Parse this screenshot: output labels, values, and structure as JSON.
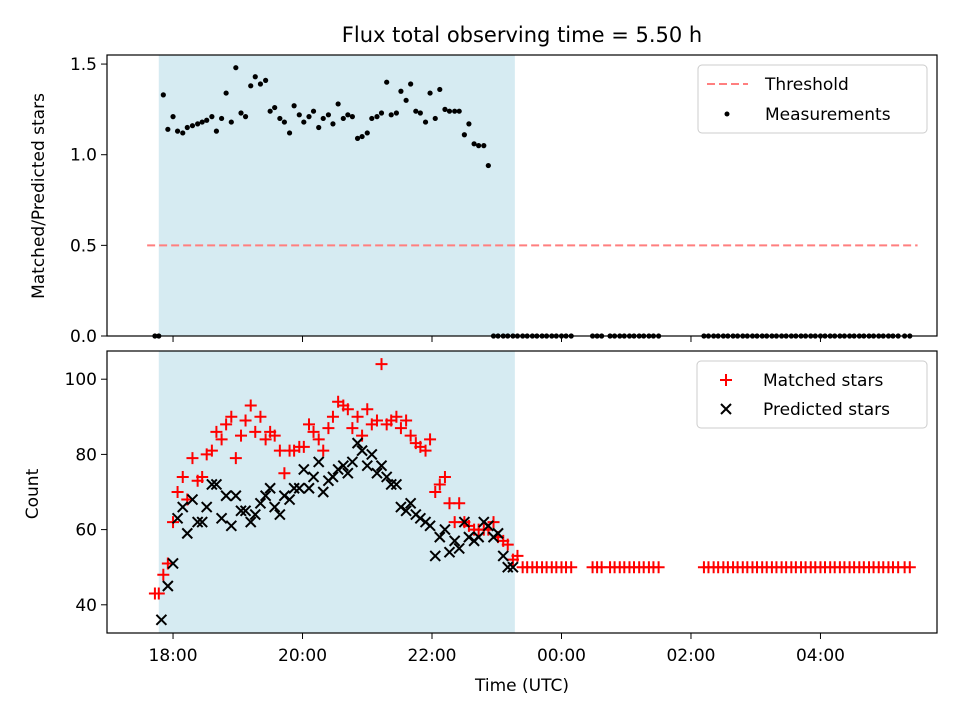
{
  "chart_data": {
    "title": "Flux total observing time = 5.50 h",
    "xlabel": "Time (UTC)",
    "x_unit": "hours since 00:00 UTC on the first night",
    "xlim": [
      16.98,
      29.8
    ],
    "xticks": [
      {
        "x": 18,
        "label": "18:00"
      },
      {
        "x": 20,
        "label": "20:00"
      },
      {
        "x": 22,
        "label": "22:00"
      },
      {
        "x": 24,
        "label": "00:00"
      },
      {
        "x": 26,
        "label": "02:00"
      },
      {
        "x": 28,
        "label": "04:00"
      }
    ],
    "colors": {
      "threshold": "#ff7f7f",
      "measurements": "#000000",
      "matched": "#ff0000",
      "predicted": "#000000",
      "shade": "#add8e6"
    },
    "observing_window": {
      "start": 17.78,
      "end": 23.28
    },
    "panels": [
      {
        "type": "scatter",
        "ylabel": "Matched/Predicted stars",
        "ylim": [
          0,
          1.55
        ],
        "yticks": [
          {
            "y": 0,
            "label": "0.0"
          },
          {
            "y": 0.5,
            "label": "0.5"
          },
          {
            "y": 1.0,
            "label": "1.0"
          },
          {
            "y": 1.5,
            "label": "1.5"
          }
        ],
        "legend_position": "top-right",
        "threshold": {
          "name": "Threshold",
          "y": 0.5,
          "x": [
            17.6,
            29.5
          ]
        },
        "measurements": {
          "name": "Measurements",
          "x": [
            17.72,
            17.78,
            17.85,
            17.92,
            18.0,
            18.07,
            18.15,
            18.22,
            18.3,
            18.38,
            18.45,
            18.52,
            18.6,
            18.67,
            18.75,
            18.82,
            18.9,
            18.97,
            19.05,
            19.12,
            19.2,
            19.27,
            19.35,
            19.43,
            19.5,
            19.57,
            19.65,
            19.72,
            19.8,
            19.87,
            19.95,
            20.02,
            20.1,
            20.17,
            20.25,
            20.32,
            20.4,
            20.47,
            20.55,
            20.63,
            20.7,
            20.77,
            20.85,
            20.92,
            21.0,
            21.07,
            21.15,
            21.22,
            21.3,
            21.37,
            21.45,
            21.52,
            21.6,
            21.67,
            21.75,
            21.82,
            21.9,
            21.97,
            22.05,
            22.12,
            22.2,
            22.27,
            22.35,
            22.42,
            22.5,
            22.57,
            22.65,
            22.72,
            22.8,
            22.87,
            22.95,
            23.02,
            23.1,
            23.17,
            23.25,
            23.32,
            23.4,
            23.47,
            23.55,
            23.62,
            23.7,
            23.77,
            23.85,
            23.92,
            24.0,
            24.07,
            24.15,
            24.48,
            24.55,
            24.62,
            24.75,
            24.82,
            24.9,
            24.97,
            25.05,
            25.12,
            25.2,
            25.27,
            25.35,
            25.42,
            25.5,
            26.2,
            26.27,
            26.35,
            26.42,
            26.5,
            26.57,
            26.65,
            26.72,
            26.8,
            26.87,
            26.95,
            27.02,
            27.1,
            27.17,
            27.25,
            27.32,
            27.4,
            27.47,
            27.55,
            27.62,
            27.7,
            27.77,
            27.85,
            27.92,
            28.0,
            28.07,
            28.15,
            28.22,
            28.3,
            28.37,
            28.45,
            28.52,
            28.6,
            28.67,
            28.75,
            28.82,
            28.9,
            28.97,
            29.05,
            29.12,
            29.2,
            29.3,
            29.38
          ],
          "y": [
            0.0,
            0.0,
            1.33,
            1.14,
            1.21,
            1.13,
            1.12,
            1.15,
            1.16,
            1.17,
            1.18,
            1.19,
            1.21,
            1.13,
            1.2,
            1.34,
            1.18,
            1.48,
            1.23,
            1.21,
            1.38,
            1.43,
            1.39,
            1.41,
            1.24,
            1.26,
            1.2,
            1.18,
            1.12,
            1.27,
            1.22,
            1.18,
            1.21,
            1.24,
            1.15,
            1.2,
            1.22,
            1.17,
            1.28,
            1.2,
            1.22,
            1.21,
            1.09,
            1.1,
            1.12,
            1.2,
            1.21,
            1.23,
            1.4,
            1.22,
            1.23,
            1.35,
            1.3,
            1.39,
            1.24,
            1.23,
            1.18,
            1.34,
            1.2,
            1.36,
            1.25,
            1.24,
            1.24,
            1.24,
            1.11,
            1.17,
            1.06,
            1.05,
            1.05,
            0.94,
            0.0,
            0.0,
            0.0,
            0.0,
            0.0,
            0.0,
            0.0,
            0.0,
            0.0,
            0.0,
            0.0,
            0.0,
            0.0,
            0.0,
            0.0,
            0.0,
            0.0,
            0.0,
            0.0,
            0.0,
            0.0,
            0.0,
            0.0,
            0.0,
            0.0,
            0.0,
            0.0,
            0.0,
            0.0,
            0.0,
            0.0,
            0.0,
            0.0,
            0.0,
            0.0,
            0.0,
            0.0,
            0.0,
            0.0,
            0.0,
            0.0,
            0.0,
            0.0,
            0.0,
            0.0,
            0.0,
            0.0,
            0.0,
            0.0,
            0.0,
            0.0,
            0.0,
            0.0,
            0.0,
            0.0,
            0.0,
            0.0,
            0.0,
            0.0,
            0.0,
            0.0,
            0.0,
            0.0,
            0.0,
            0.0,
            0.0,
            0.0,
            0.0,
            0.0,
            0.0,
            0.0,
            0.0,
            0.0,
            0.0
          ]
        }
      },
      {
        "type": "scatter",
        "ylabel": "Count",
        "ylim": [
          32.5,
          107.5
        ],
        "yticks": [
          {
            "y": 40,
            "label": "40"
          },
          {
            "y": 60,
            "label": "60"
          },
          {
            "y": 80,
            "label": "80"
          },
          {
            "y": 100,
            "label": "100"
          }
        ],
        "legend_position": "top-right",
        "matched": {
          "name": "Matched stars",
          "x": [
            17.72,
            17.78,
            17.85,
            17.92,
            18.0,
            18.07,
            18.15,
            18.22,
            18.3,
            18.38,
            18.45,
            18.52,
            18.6,
            18.67,
            18.75,
            18.82,
            18.9,
            18.97,
            19.05,
            19.12,
            19.2,
            19.27,
            19.35,
            19.43,
            19.5,
            19.57,
            19.65,
            19.72,
            19.8,
            19.87,
            19.95,
            20.02,
            20.1,
            20.17,
            20.25,
            20.32,
            20.4,
            20.47,
            20.55,
            20.63,
            20.7,
            20.77,
            20.85,
            20.92,
            21.0,
            21.07,
            21.15,
            21.22,
            21.3,
            21.37,
            21.45,
            21.52,
            21.6,
            21.67,
            21.75,
            21.82,
            21.9,
            21.97,
            22.05,
            22.12,
            22.2,
            22.27,
            22.35,
            22.42,
            22.5,
            22.57,
            22.65,
            22.72,
            22.8,
            22.87,
            22.95,
            23.02,
            23.1,
            23.17,
            23.25,
            23.32,
            23.4,
            23.47,
            23.55,
            23.62,
            23.7,
            23.77,
            23.85,
            23.92,
            24.0,
            24.07,
            24.15,
            24.48,
            24.55,
            24.62,
            24.75,
            24.82,
            24.9,
            24.97,
            25.05,
            25.12,
            25.2,
            25.27,
            25.35,
            25.42,
            25.5,
            26.2,
            26.27,
            26.35,
            26.42,
            26.5,
            26.57,
            26.65,
            26.72,
            26.8,
            26.87,
            26.95,
            27.02,
            27.1,
            27.17,
            27.25,
            27.32,
            27.4,
            27.47,
            27.55,
            27.62,
            27.7,
            27.77,
            27.85,
            27.92,
            28.0,
            28.07,
            28.15,
            28.22,
            28.3,
            28.37,
            28.45,
            28.52,
            28.6,
            28.67,
            28.75,
            28.82,
            28.9,
            28.97,
            29.05,
            29.12,
            29.2,
            29.3,
            29.38
          ],
          "y": [
            43,
            43,
            48,
            51,
            62,
            70,
            74,
            68,
            79,
            73,
            74,
            80,
            81,
            86,
            84,
            88,
            90,
            79,
            85,
            89,
            93,
            86,
            90,
            84,
            86,
            85,
            81,
            75,
            81,
            81,
            82,
            82,
            88,
            86,
            84,
            81,
            87,
            90,
            94,
            93,
            92,
            87,
            90,
            85,
            92,
            88,
            89,
            104,
            88,
            89,
            90,
            87,
            89,
            85,
            83,
            82,
            81,
            84,
            70,
            72,
            74,
            67,
            62,
            67,
            62,
            61,
            60,
            60,
            60,
            60,
            62,
            58,
            57,
            56,
            52,
            53,
            50,
            50,
            50,
            50,
            50,
            50,
            50,
            50,
            50,
            50,
            50,
            50,
            50,
            50,
            50,
            50,
            50,
            50,
            50,
            50,
            50,
            50,
            50,
            50,
            50,
            50,
            50,
            50,
            50,
            50,
            50,
            50,
            50,
            50,
            50,
            50,
            50,
            50,
            50,
            50,
            50,
            50,
            50,
            50,
            50,
            50,
            50,
            50,
            50,
            50,
            50,
            50,
            50,
            50,
            50,
            50,
            50,
            50,
            50,
            50,
            50,
            50,
            50,
            50,
            50,
            50,
            50,
            50
          ]
        },
        "predicted": {
          "name": "Predicted stars",
          "x": [
            17.82,
            17.92,
            18.0,
            18.07,
            18.15,
            18.22,
            18.3,
            18.38,
            18.45,
            18.52,
            18.6,
            18.67,
            18.75,
            18.82,
            18.9,
            18.97,
            19.05,
            19.12,
            19.2,
            19.27,
            19.35,
            19.43,
            19.5,
            19.57,
            19.65,
            19.72,
            19.8,
            19.87,
            19.95,
            20.02,
            20.1,
            20.17,
            20.25,
            20.32,
            20.4,
            20.47,
            20.55,
            20.63,
            20.7,
            20.77,
            20.85,
            20.92,
            21.0,
            21.07,
            21.15,
            21.22,
            21.3,
            21.37,
            21.45,
            21.52,
            21.6,
            21.67,
            21.75,
            21.82,
            21.9,
            21.97,
            22.05,
            22.12,
            22.2,
            22.27,
            22.35,
            22.42,
            22.5,
            22.57,
            22.65,
            22.72,
            22.8,
            22.87,
            22.95,
            23.02,
            23.1,
            23.17,
            23.25
          ],
          "y": [
            36,
            45,
            51,
            63,
            66,
            59,
            68,
            62,
            62,
            66,
            72,
            72,
            63,
            69,
            61,
            69,
            65,
            65,
            62,
            64,
            67,
            69,
            71,
            66,
            64,
            69,
            68,
            71,
            71,
            76,
            71,
            74,
            78,
            70,
            73,
            74,
            76,
            77,
            75,
            78,
            83,
            81,
            77,
            80,
            75,
            77,
            74,
            72,
            72,
            66,
            65,
            67,
            64,
            63,
            62,
            61,
            53,
            58,
            60,
            54,
            57,
            55,
            62,
            58,
            57,
            58,
            62,
            61,
            58,
            59,
            53,
            50,
            50
          ]
        }
      }
    ]
  }
}
